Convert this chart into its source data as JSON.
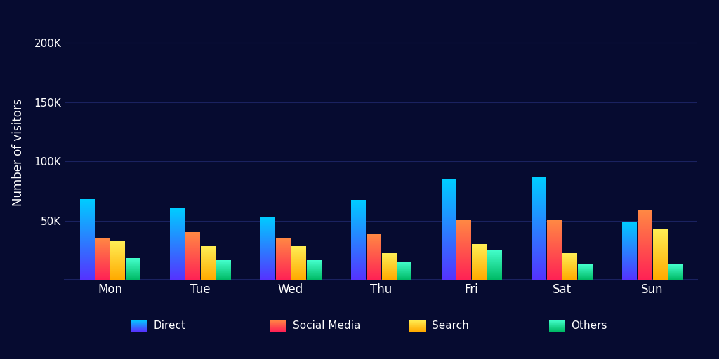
{
  "categories": [
    "Mon",
    "Tue",
    "Wed",
    "Thu",
    "Fri",
    "Sat",
    "Sun"
  ],
  "series": {
    "Direct": [
      68000,
      60000,
      53000,
      67000,
      84000,
      86000,
      49000
    ],
    "Social Media": [
      35000,
      40000,
      35000,
      38000,
      50000,
      50000,
      58000
    ],
    "Search": [
      32000,
      28000,
      28000,
      22000,
      30000,
      22000,
      43000
    ],
    "Others": [
      18000,
      16000,
      16000,
      15000,
      25000,
      13000,
      13000
    ]
  },
  "series_gradients": {
    "Direct": [
      "#5533ff",
      "#00ccff"
    ],
    "Social Media": [
      "#ff2255",
      "#ff8844"
    ],
    "Search": [
      "#ffaa00",
      "#ffee55"
    ],
    "Others": [
      "#00bb66",
      "#44ffcc"
    ]
  },
  "legend_gradients": {
    "Direct": [
      "#5533ff",
      "#00ccff"
    ],
    "Social Media": [
      "#ff2255",
      "#ff8844"
    ],
    "Search": [
      "#ffaa00",
      "#ffee55"
    ],
    "Others": [
      "#00bb66",
      "#44ffcc"
    ]
  },
  "background_color": "#060b30",
  "grid_color": "#1a2260",
  "text_color": "#ffffff",
  "ylabel": "Number of visitors",
  "yticks": [
    0,
    50000,
    100000,
    150000,
    200000
  ],
  "ytick_labels": [
    "",
    "50K",
    "100K",
    "150K",
    "200K"
  ],
  "ylim": [
    0,
    215000
  ],
  "bar_width": 0.17,
  "figsize": [
    10.24,
    5.12
  ],
  "dpi": 100
}
